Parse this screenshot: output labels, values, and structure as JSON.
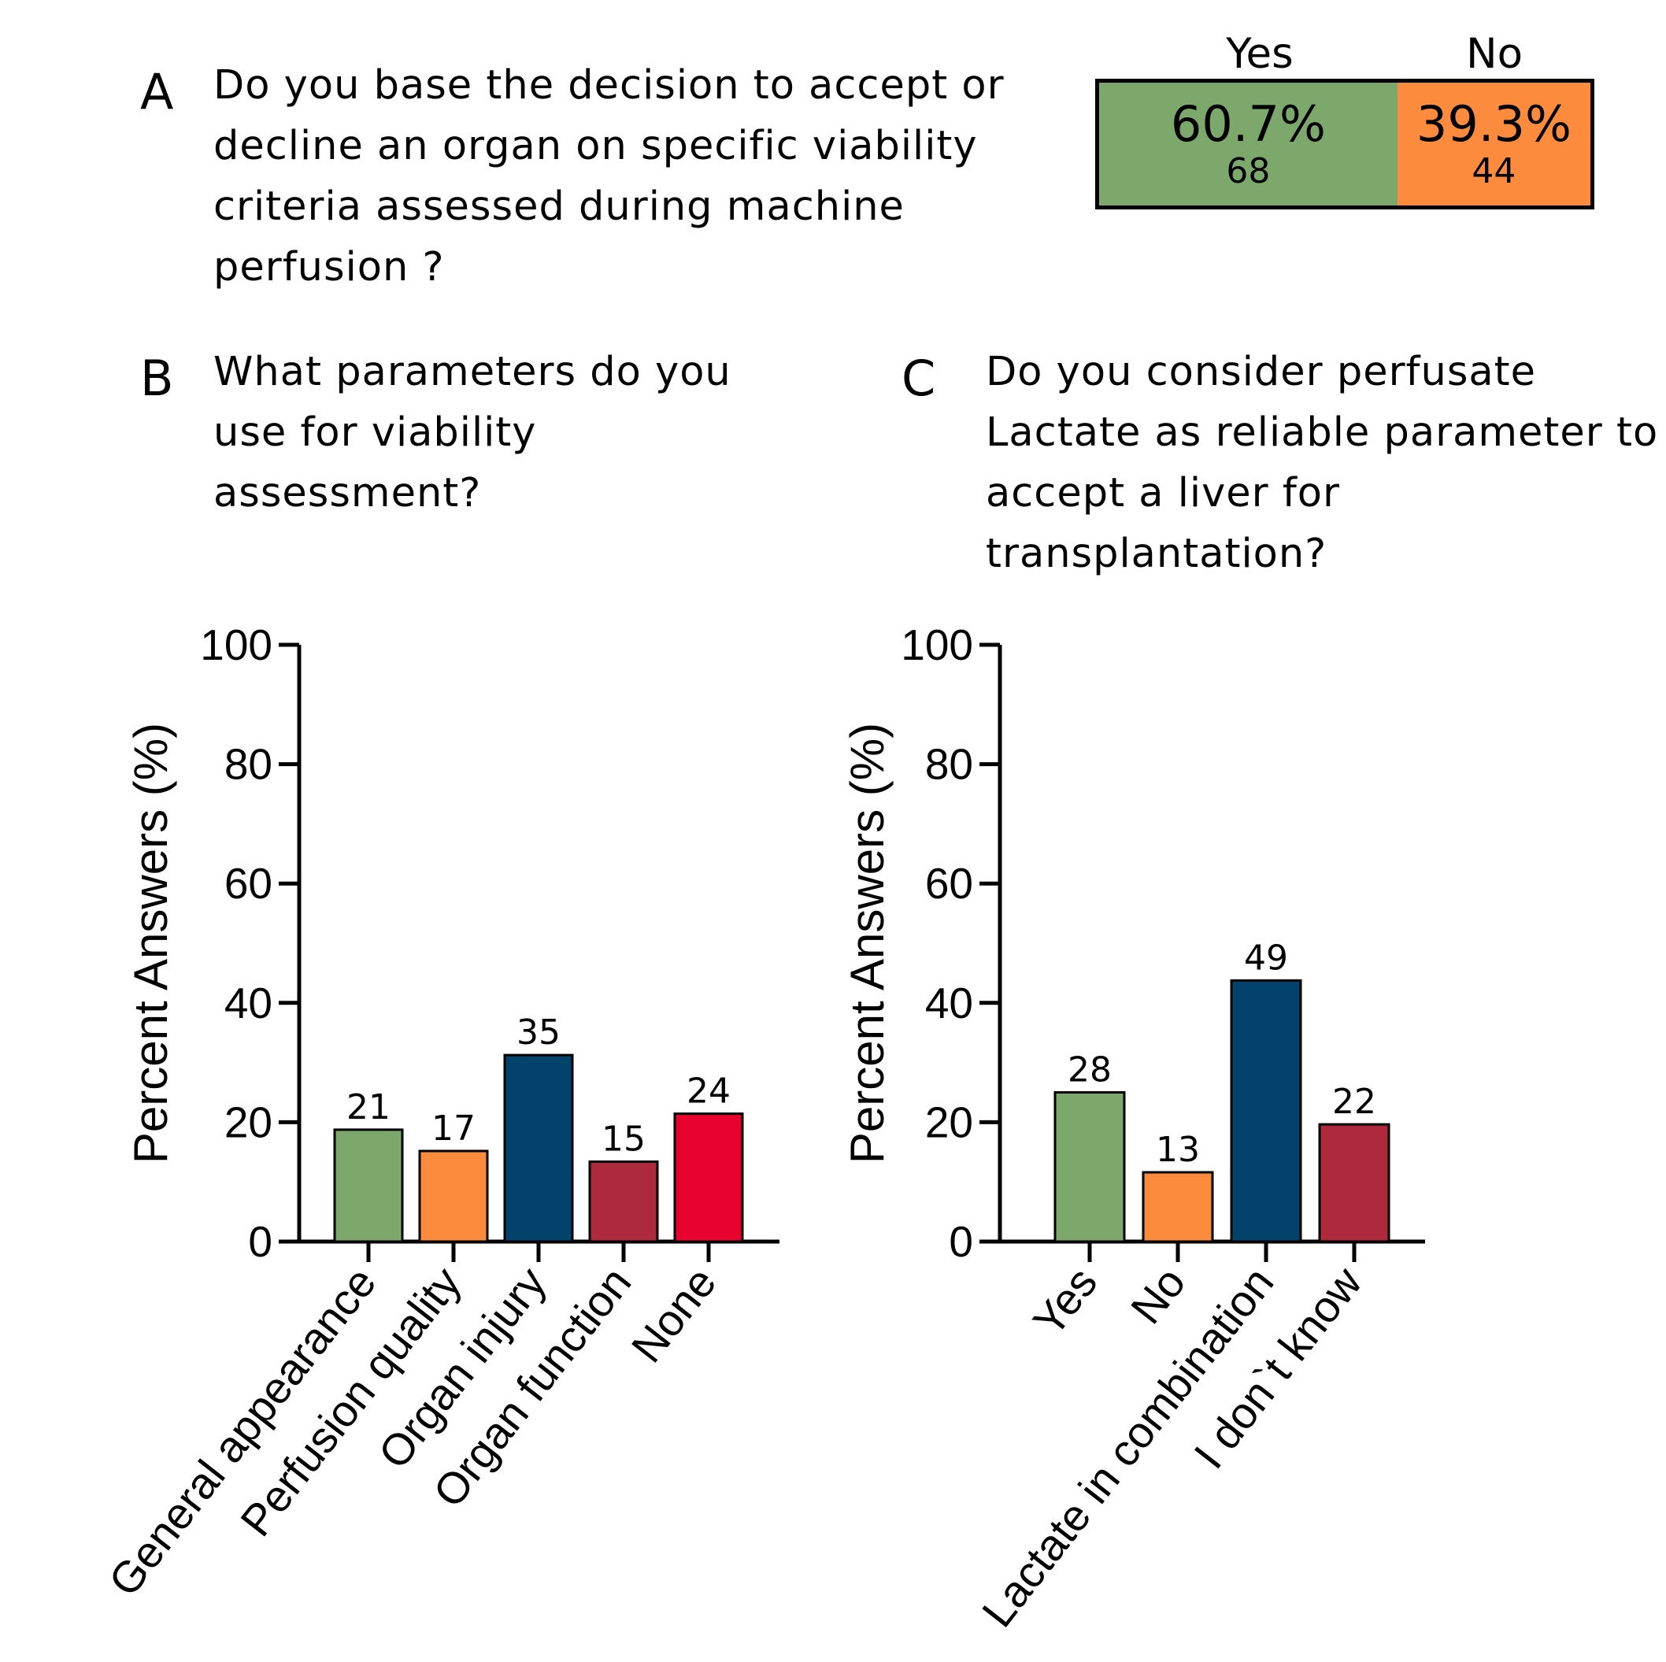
{
  "panel_a": {
    "letter": "A",
    "question_lines": [
      "Do you base the decision to accept or",
      "decline an organ on specific viability",
      "criteria assessed during machine",
      "perfusion ?"
    ],
    "segments": [
      {
        "header": "Yes",
        "percent_label": "60.7%",
        "count_label": "68",
        "fraction": 0.607,
        "color": "#7DA86C"
      },
      {
        "header": "No",
        "percent_label": "39.3%",
        "count_label": "44",
        "fraction": 0.393,
        "color": "#FD8B3D"
      }
    ]
  },
  "panel_b": {
    "letter": "B",
    "question_lines": [
      "What parameters do you",
      "use for viability",
      "assessment?"
    ]
  },
  "panel_c": {
    "letter": "C",
    "question_lines": [
      "Do you consider perfusate",
      "Lactate as reliable parameter to",
      "accept a liver for",
      "transplantation?"
    ]
  },
  "chart_data": [
    {
      "type": "bar",
      "title": "What parameters do you use for viability assessment?",
      "ylabel": "Percent Answers (%)",
      "xlabel": "",
      "ylim": [
        0,
        100
      ],
      "yticks": [
        0,
        20,
        40,
        60,
        80,
        100
      ],
      "categories": [
        "General appearance",
        "Perfusion quality",
        "Organ injury",
        "Organ function",
        "None"
      ],
      "values": [
        18.75,
        15.18,
        31.25,
        13.39,
        21.43
      ],
      "data_labels": [
        "21",
        "17",
        "35",
        "15",
        "24"
      ],
      "colors": [
        "#7DA86C",
        "#FD8B3D",
        "#03436B",
        "#AD2A3D",
        "#E8032F"
      ]
    },
    {
      "type": "bar",
      "title": "Do you consider perfusate Lactate as reliable parameter to accept a liver for transplantation?",
      "ylabel": "Percent Answers (%)",
      "xlabel": "",
      "ylim": [
        0,
        100
      ],
      "yticks": [
        0,
        20,
        40,
        60,
        80,
        100
      ],
      "categories": [
        "Yes",
        "No",
        "Lactate in combination",
        "I don`t know"
      ],
      "values": [
        25.0,
        11.61,
        43.75,
        19.64
      ],
      "data_labels": [
        "28",
        "13",
        "49",
        "22"
      ],
      "colors": [
        "#7DA86C",
        "#FD8B3D",
        "#03436B",
        "#AD2A3D"
      ]
    }
  ]
}
